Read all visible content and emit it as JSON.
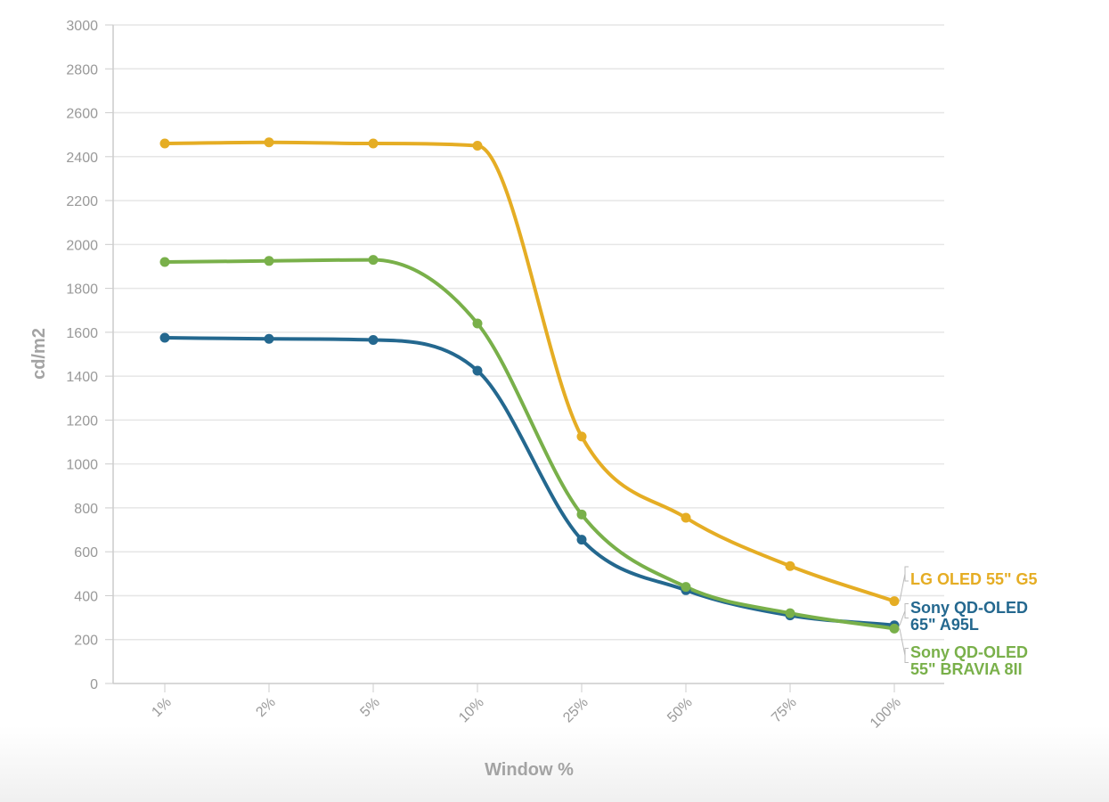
{
  "chart_data": {
    "type": "line",
    "xlabel": "Window %",
    "ylabel": "cd/m2",
    "categories": [
      "1%",
      "2%",
      "5%",
      "10%",
      "25%",
      "50%",
      "75%",
      "100%"
    ],
    "ylim": [
      0,
      3000
    ],
    "yticks": [
      0,
      200,
      400,
      600,
      800,
      1000,
      1200,
      1400,
      1600,
      1800,
      2000,
      2200,
      2400,
      2600,
      2800,
      3000
    ],
    "grid": true,
    "legend": "end-of-line labels at right",
    "series": [
      {
        "name": "LG OLED 55\" G5",
        "label_lines": [
          "LG OLED 55\" G5"
        ],
        "color": "#e5ad24",
        "values": [
          2460,
          2465,
          2460,
          2450,
          1125,
          755,
          535,
          375
        ]
      },
      {
        "name": "Sony QD-OLED 65\" A95L",
        "label_lines": [
          "Sony QD-OLED",
          "65\" A95L"
        ],
        "color": "#24688f",
        "values": [
          1575,
          1570,
          1565,
          1425,
          655,
          425,
          310,
          265
        ]
      },
      {
        "name": "Sony QD-OLED 55\" BRAVIA 8II",
        "label_lines": [
          "Sony QD-OLED",
          "55\" BRAVIA 8II"
        ],
        "color": "#79b04a",
        "values": [
          1920,
          1925,
          1930,
          1640,
          770,
          440,
          320,
          250
        ]
      }
    ]
  }
}
